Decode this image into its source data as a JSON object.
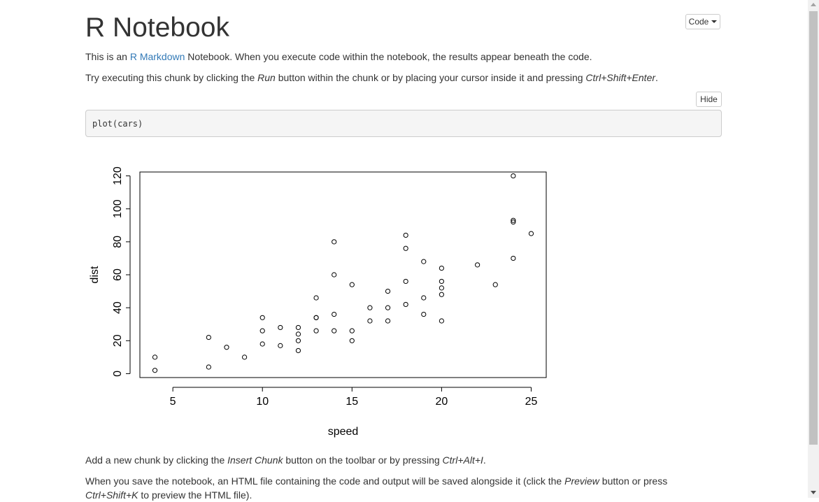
{
  "header": {
    "title": "R Notebook",
    "code_button": "Code"
  },
  "intro": {
    "p1_before": "This is an ",
    "p1_link": "R Markdown",
    "p1_after": " Notebook. When you execute code within the notebook, the results appear beneath the code.",
    "p2_before": "Try executing this chunk by clicking the ",
    "p2_em1": "Run",
    "p2_mid": " button within the chunk or by placing your cursor inside it and pressing ",
    "p2_em2": "Ctrl+Shift+Enter",
    "p2_after": "."
  },
  "chunk": {
    "hide_button": "Hide",
    "code": "plot(cars)"
  },
  "chart_data": {
    "type": "scatter",
    "xlabel": "speed",
    "ylabel": "dist",
    "xlim": [
      3.16,
      25.84
    ],
    "ylim": [
      -2.36,
      122.36
    ],
    "xticks": [
      5,
      10,
      15,
      20,
      25
    ],
    "yticks": [
      0,
      20,
      40,
      60,
      80,
      100,
      120
    ],
    "grid": false,
    "points": [
      [
        4,
        2
      ],
      [
        4,
        10
      ],
      [
        7,
        4
      ],
      [
        7,
        22
      ],
      [
        8,
        16
      ],
      [
        9,
        10
      ],
      [
        10,
        18
      ],
      [
        10,
        26
      ],
      [
        10,
        34
      ],
      [
        11,
        17
      ],
      [
        11,
        28
      ],
      [
        12,
        14
      ],
      [
        12,
        20
      ],
      [
        12,
        24
      ],
      [
        12,
        28
      ],
      [
        13,
        26
      ],
      [
        13,
        34
      ],
      [
        13,
        34
      ],
      [
        13,
        46
      ],
      [
        14,
        26
      ],
      [
        14,
        36
      ],
      [
        14,
        60
      ],
      [
        14,
        80
      ],
      [
        15,
        20
      ],
      [
        15,
        26
      ],
      [
        15,
        54
      ],
      [
        16,
        32
      ],
      [
        16,
        40
      ],
      [
        17,
        32
      ],
      [
        17,
        40
      ],
      [
        17,
        50
      ],
      [
        18,
        42
      ],
      [
        18,
        56
      ],
      [
        18,
        76
      ],
      [
        18,
        84
      ],
      [
        19,
        36
      ],
      [
        19,
        46
      ],
      [
        19,
        68
      ],
      [
        20,
        32
      ],
      [
        20,
        48
      ],
      [
        20,
        52
      ],
      [
        20,
        56
      ],
      [
        20,
        64
      ],
      [
        22,
        66
      ],
      [
        23,
        54
      ],
      [
        24,
        70
      ],
      [
        24,
        92
      ],
      [
        24,
        93
      ],
      [
        24,
        120
      ],
      [
        25,
        85
      ]
    ]
  },
  "outro": {
    "p3_before": "Add a new chunk by clicking the ",
    "p3_em1": "Insert Chunk",
    "p3_mid": " button on the toolbar or by pressing ",
    "p3_em2": "Ctrl+Alt+I",
    "p3_after": ".",
    "p4_before": "When you save the notebook, an HTML file containing the code and output will be saved alongside it (click the ",
    "p4_em1": "Preview",
    "p4_after": " button or press",
    "p5_em1": "Ctrl+Shift+K",
    "p5_after": " to preview the HTML file)."
  }
}
